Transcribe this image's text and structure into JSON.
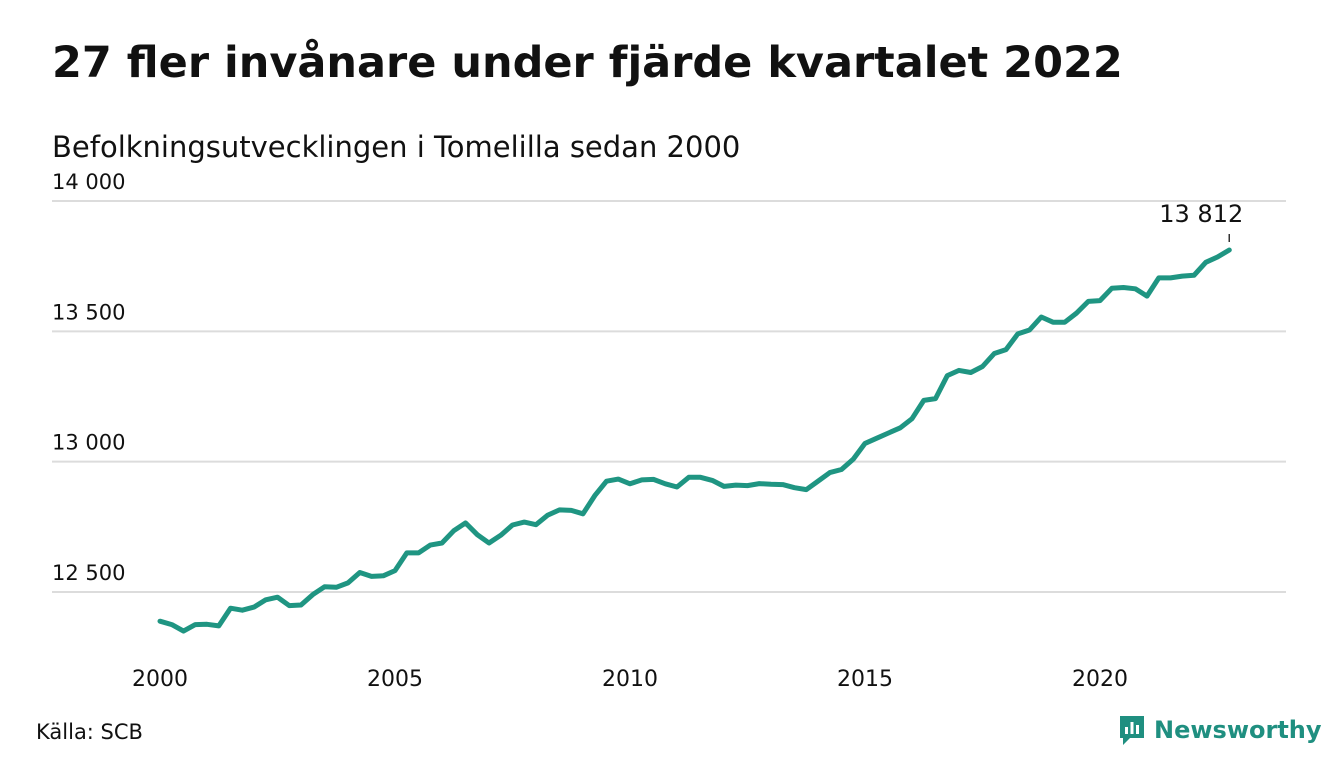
{
  "title": "27 fler invånare under fjärde kvartalet 2022",
  "subtitle": "Befolkningsutvecklingen i Tomelilla sedan 2000",
  "source": "Källa: SCB",
  "brand": {
    "name": "Newsworthy",
    "icon": "newsworthy-logo-icon",
    "color": "#1f8f80"
  },
  "chart_data": {
    "type": "line",
    "title": "27 fler invånare under fjärde kvartalet 2022",
    "subtitle": "Befolkningsutvecklingen i Tomelilla sedan 2000",
    "xlabel": "",
    "ylabel": "",
    "xlim": [
      2000,
      2023.25
    ],
    "ylim": [
      12280,
      14000
    ],
    "x_ticks": [
      2000,
      2005,
      2010,
      2015,
      2020
    ],
    "x_tick_labels": [
      "2000",
      "2005",
      "2010",
      "2015",
      "2020"
    ],
    "y_ticks": [
      12500,
      13000,
      13500,
      14000
    ],
    "y_tick_labels": [
      "12 500",
      "13 000",
      "13 500",
      "14 000"
    ],
    "grid": true,
    "line_color": "#1f9582",
    "annotation": {
      "label": "13 812",
      "x": 2022.75,
      "y": 13812
    },
    "series": [
      {
        "x": [
          2000.0,
          2000.25,
          2000.5,
          2000.75,
          2001.0,
          2001.25,
          2001.5,
          2001.75,
          2002.0,
          2002.25,
          2002.5,
          2002.75,
          2003.0,
          2003.25,
          2003.5,
          2003.75,
          2004.0,
          2004.25,
          2004.5,
          2004.75,
          2005.0,
          2005.25,
          2005.5,
          2005.75,
          2006.0,
          2006.25,
          2006.5,
          2006.75,
          2007.0,
          2007.25,
          2007.5,
          2007.75,
          2008.0,
          2008.25,
          2008.5,
          2008.75,
          2009.0,
          2009.25,
          2009.5,
          2009.75,
          2010.0,
          2010.25,
          2010.5,
          2010.75,
          2011.0,
          2011.25,
          2011.5,
          2011.75,
          2012.0,
          2012.25,
          2012.5,
          2012.75,
          2013.0,
          2013.25,
          2013.5,
          2013.75,
          2014.0,
          2014.25,
          2014.5,
          2014.75,
          2015.0,
          2015.25,
          2015.5,
          2015.75,
          2016.0,
          2016.25,
          2016.5,
          2016.75,
          2017.0,
          2017.25,
          2017.5,
          2017.75,
          2018.0,
          2018.25,
          2018.5,
          2018.75,
          2019.0,
          2019.25,
          2019.5,
          2019.75,
          2020.0,
          2020.25,
          2020.5,
          2020.75,
          2021.0,
          2021.25,
          2021.5,
          2021.75,
          2022.0,
          2022.25,
          2022.5,
          2022.75
        ],
        "values": [
          12388,
          12375,
          12350,
          12375,
          12376,
          12370,
          12438,
          12430,
          12442,
          12470,
          12480,
          12448,
          12450,
          12490,
          12520,
          12518,
          12535,
          12575,
          12560,
          12562,
          12582,
          12650,
          12650,
          12680,
          12688,
          12735,
          12765,
          12720,
          12688,
          12718,
          12757,
          12768,
          12758,
          12795,
          12815,
          12813,
          12800,
          12870,
          12925,
          12933,
          12915,
          12930,
          12932,
          12915,
          12903,
          12940,
          12940,
          12928,
          12905,
          12910,
          12908,
          12916,
          12913,
          12912,
          12900,
          12893,
          12925,
          12958,
          12970,
          13010,
          13070,
          13090,
          13110,
          13130,
          13165,
          13235,
          13242,
          13330,
          13350,
          13342,
          13365,
          13415,
          13430,
          13490,
          13505,
          13555,
          13535,
          13535,
          13570,
          13615,
          13618,
          13665,
          13668,
          13663,
          13635,
          13705,
          13705,
          13712,
          13715,
          13765,
          13785,
          13812
        ]
      }
    ]
  }
}
